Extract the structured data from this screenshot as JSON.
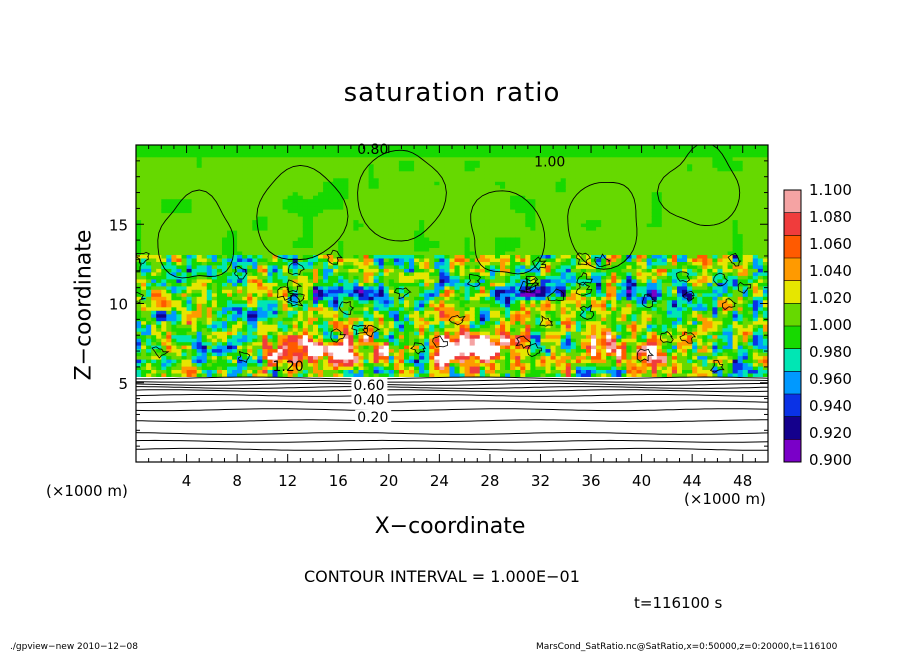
{
  "figure": {
    "title": "saturation ratio",
    "xlabel": "X−coordinate",
    "ylabel": "Z−coordinate",
    "x_unit_left": "(×1000 m)",
    "x_unit_right": "(×1000 m)",
    "contour_interval": "CONTOUR INTERVAL = 1.000E−01",
    "time_label": "t=116100 s",
    "footer_left": "./gpview−new  2010−12−08",
    "footer_right": "MarsCond_SatRatio.nc@SatRatio,x=0:50000,z=0:20000,t=116100"
  },
  "chart_data": {
    "type": "heatmap",
    "title": "saturation ratio",
    "xlabel": "X−coordinate",
    "ylabel": "Z−coordinate",
    "x_unit": "×1000 m",
    "xlim": [
      0,
      50
    ],
    "ylim": [
      0,
      20
    ],
    "x_ticks": [
      4,
      8,
      12,
      16,
      20,
      24,
      28,
      32,
      36,
      40,
      44,
      48
    ],
    "y_ticks": [
      5,
      10,
      15
    ],
    "colorbar": {
      "levels": [
        "1.100",
        "1.080",
        "1.060",
        "1.040",
        "1.020",
        "1.000",
        "0.980",
        "0.960",
        "0.940",
        "0.920",
        "0.900"
      ],
      "colors": [
        "#f5a3a3",
        "#f03c3c",
        "#ff5a00",
        "#ff9a00",
        "#e6e600",
        "#66d900",
        "#17d900",
        "#00e6b4",
        "#0099ff",
        "#0a32e6",
        "#14008c",
        "#7a00c8"
      ]
    },
    "contour_interval": 0.1,
    "contour_levels": [
      {
        "level": "0.20",
        "z": 2.6
      },
      {
        "level": "0.40",
        "z": 3.8
      },
      {
        "level": "0.60",
        "z": 4.7
      },
      {
        "level": "0.80",
        "z": 5.0
      },
      {
        "level": "1.00",
        "z": 18.5
      },
      {
        "level": "1.20",
        "z": 6.0
      }
    ],
    "fields": {
      "upper_region_value": 1.0,
      "mixed_layer_z_range": [
        5.5,
        13
      ],
      "lower_region": "below color range (white, contours only)"
    },
    "time": "t=116100 s"
  }
}
